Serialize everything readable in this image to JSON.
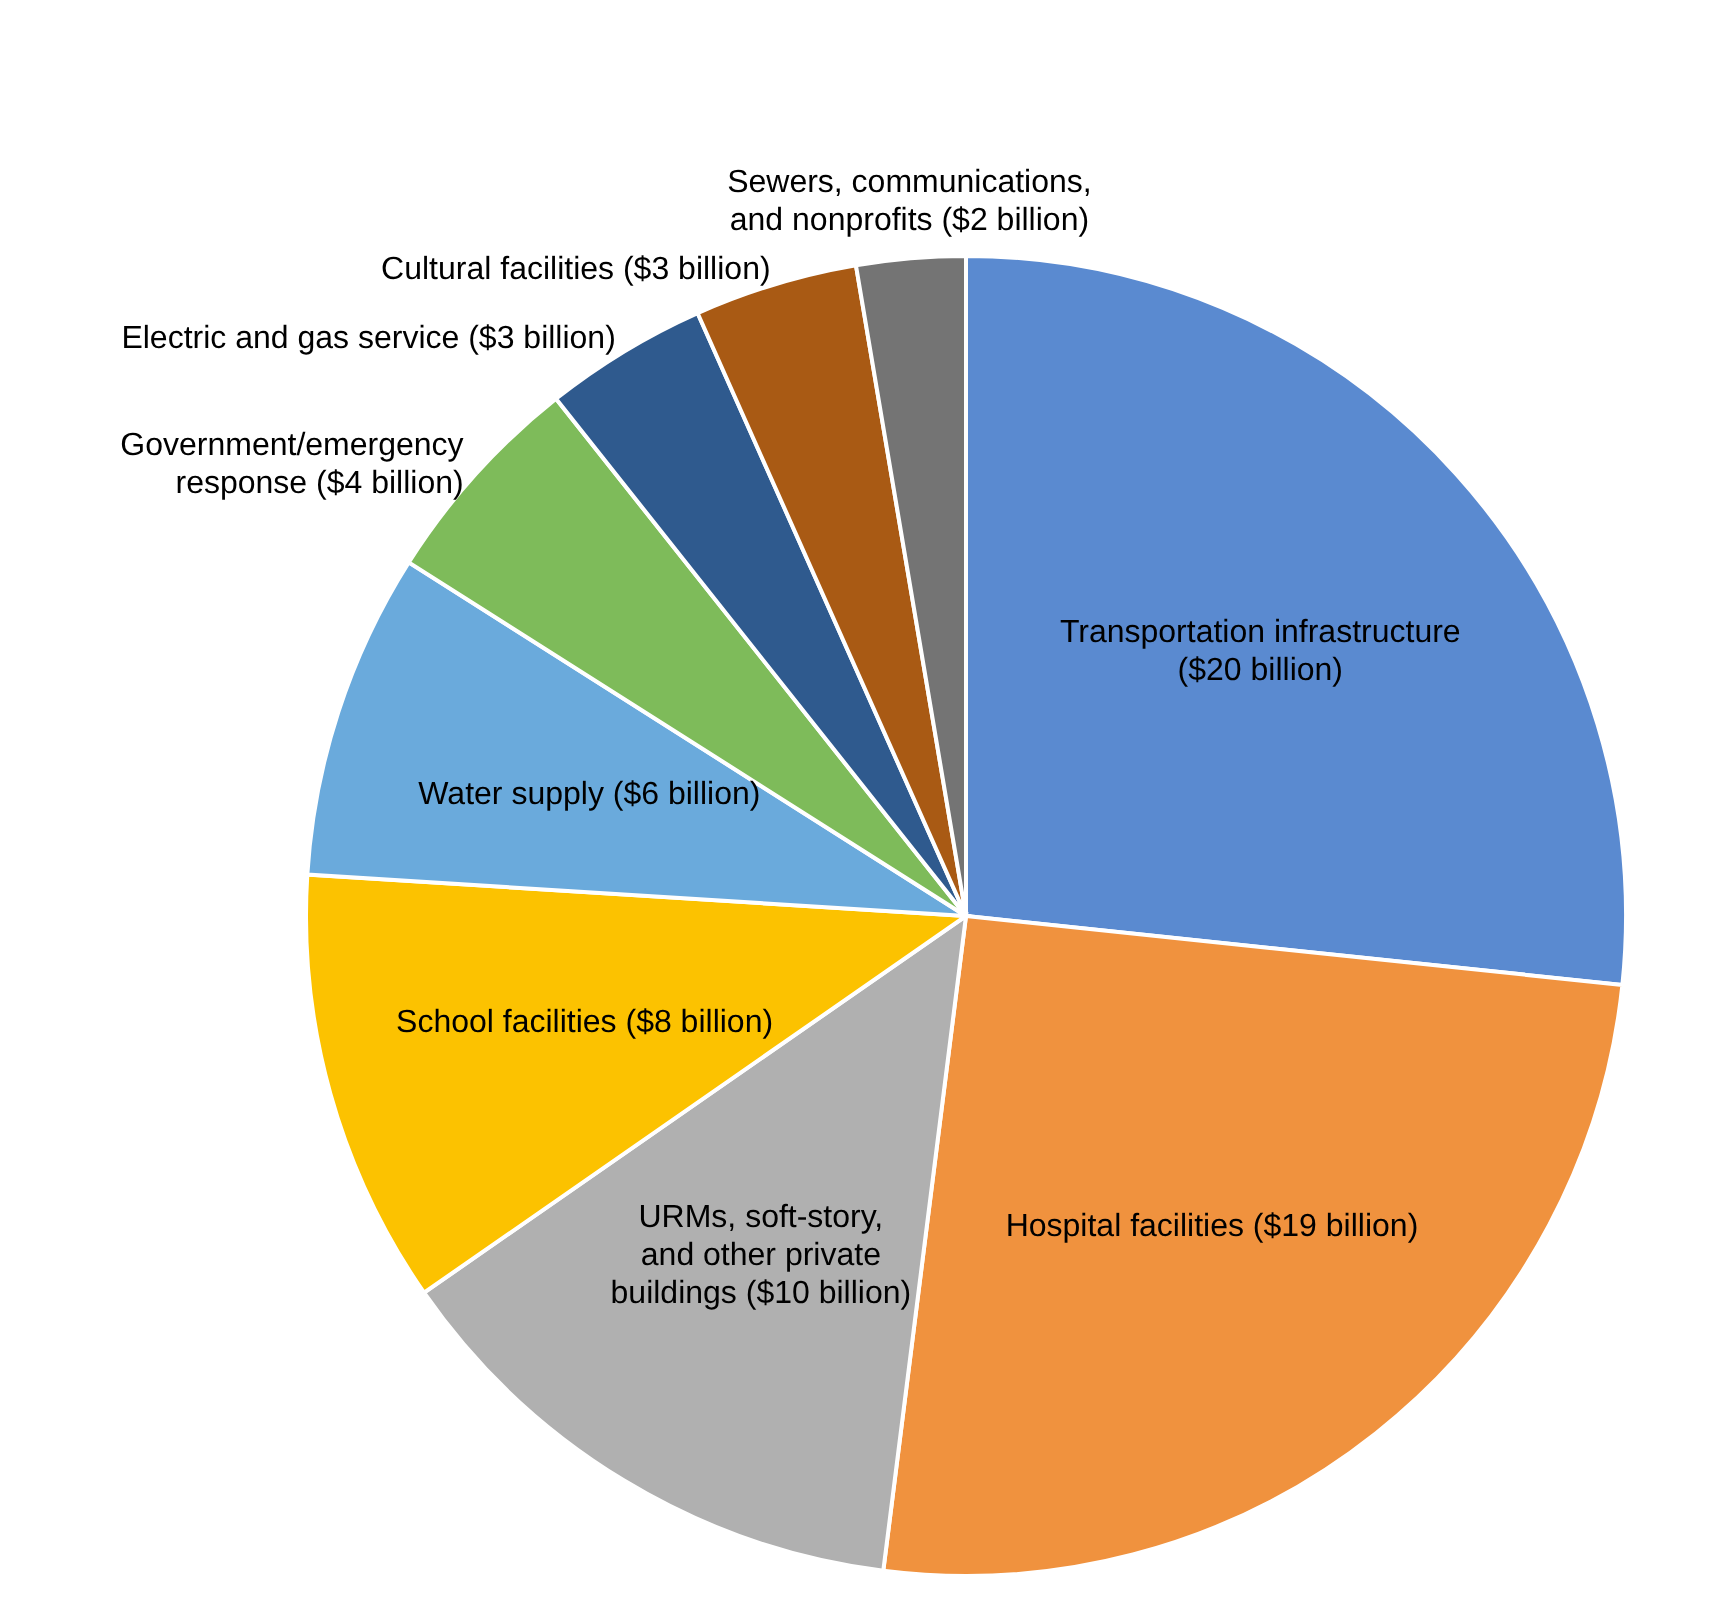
{
  "chart_data": {
    "type": "pie",
    "categories": [
      "Transportation infrastructure\n($20 billion)",
      "Hospital facilities ($19 billion)",
      "URMs, soft-story,\nand other private\nbuildings ($10 billion)",
      "School facilities ($8 billion)",
      "Water supply ($6 billion)",
      "Government/emergency\nresponse ($4 billion)",
      "Electric and gas service ($3 billion)",
      "Cultural facilities ($3 billion)",
      "Sewers, communications,\nand nonprofits ($2 billion)"
    ],
    "values": [
      20,
      19,
      10,
      8,
      6,
      4,
      3,
      3,
      2
    ],
    "colors": [
      "#5a8ad0",
      "#f0923e",
      "#b0b0b0",
      "#fcc200",
      "#6aaadc",
      "#7ebb5a",
      "#2f5a8e",
      "#a95a14",
      "#747474"
    ],
    "legend": false
  }
}
